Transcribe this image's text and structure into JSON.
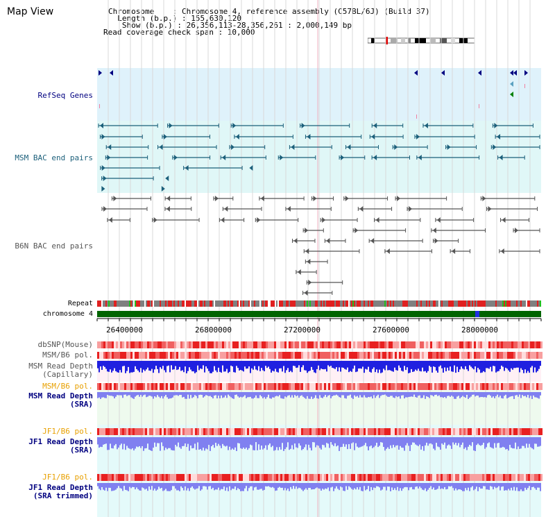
{
  "title": "Map View",
  "header": {
    "chromosome_line": "Chromosome    : Chromosome 4, reference assembly (C57BL/6J) (Build 37)",
    "length_line": "  Length (b.p.) : 155,630,120",
    "show_line": "   Show (b.p.) : 26,356,113-28,356,261 : 2,000,149 bp",
    "coverage_line": "Read coverage check span : 10,000"
  },
  "tracks": {
    "refseq": {
      "label": "RefSeq Genes",
      "color": "#000080"
    },
    "msm_bac": {
      "label": "MSM BAC end pairs",
      "color": "#1b5f7a"
    },
    "b6n_bac": {
      "label": "B6N BAC end pairs",
      "color": "#555555"
    },
    "repeat": {
      "label": "Repeat"
    },
    "chromosome": {
      "label": "chromosome 4"
    },
    "dbsnp": {
      "label": "dbSNP(Mouse)"
    },
    "msm_b6_pol_1": {
      "label": "MSM/B6 pol."
    },
    "msm_depth_cap": {
      "label": "MSM Read Depth\n(Capillary)"
    },
    "msm_b6_pol_2": {
      "label": "MSM/B6 pol."
    },
    "msm_depth_sra": {
      "label": "MSM Read Depth\n(SRA)"
    },
    "jf1_b6_pol_1": {
      "label": "JF1/B6 pol."
    },
    "jf1_depth_sra": {
      "label": "JF1 Read Depth\n(SRA)"
    },
    "jf1_b6_pol_2": {
      "label": "JF1/B6 pol."
    },
    "jf1_depth_trim": {
      "label": "JF1 Read Depth\n(SRA trimmed)"
    }
  },
  "axis": {
    "ticks": [
      "26400000",
      "26800000",
      "27200000",
      "27600000",
      "28000000"
    ]
  },
  "colors": {
    "navy": "#000080",
    "orange": "#e8a000",
    "teal": "#1b5f7a",
    "gray": "#555555",
    "chrom_green": "#006400",
    "depth_blue": "#2020e0",
    "depth_light": "#8080f0"
  }
}
